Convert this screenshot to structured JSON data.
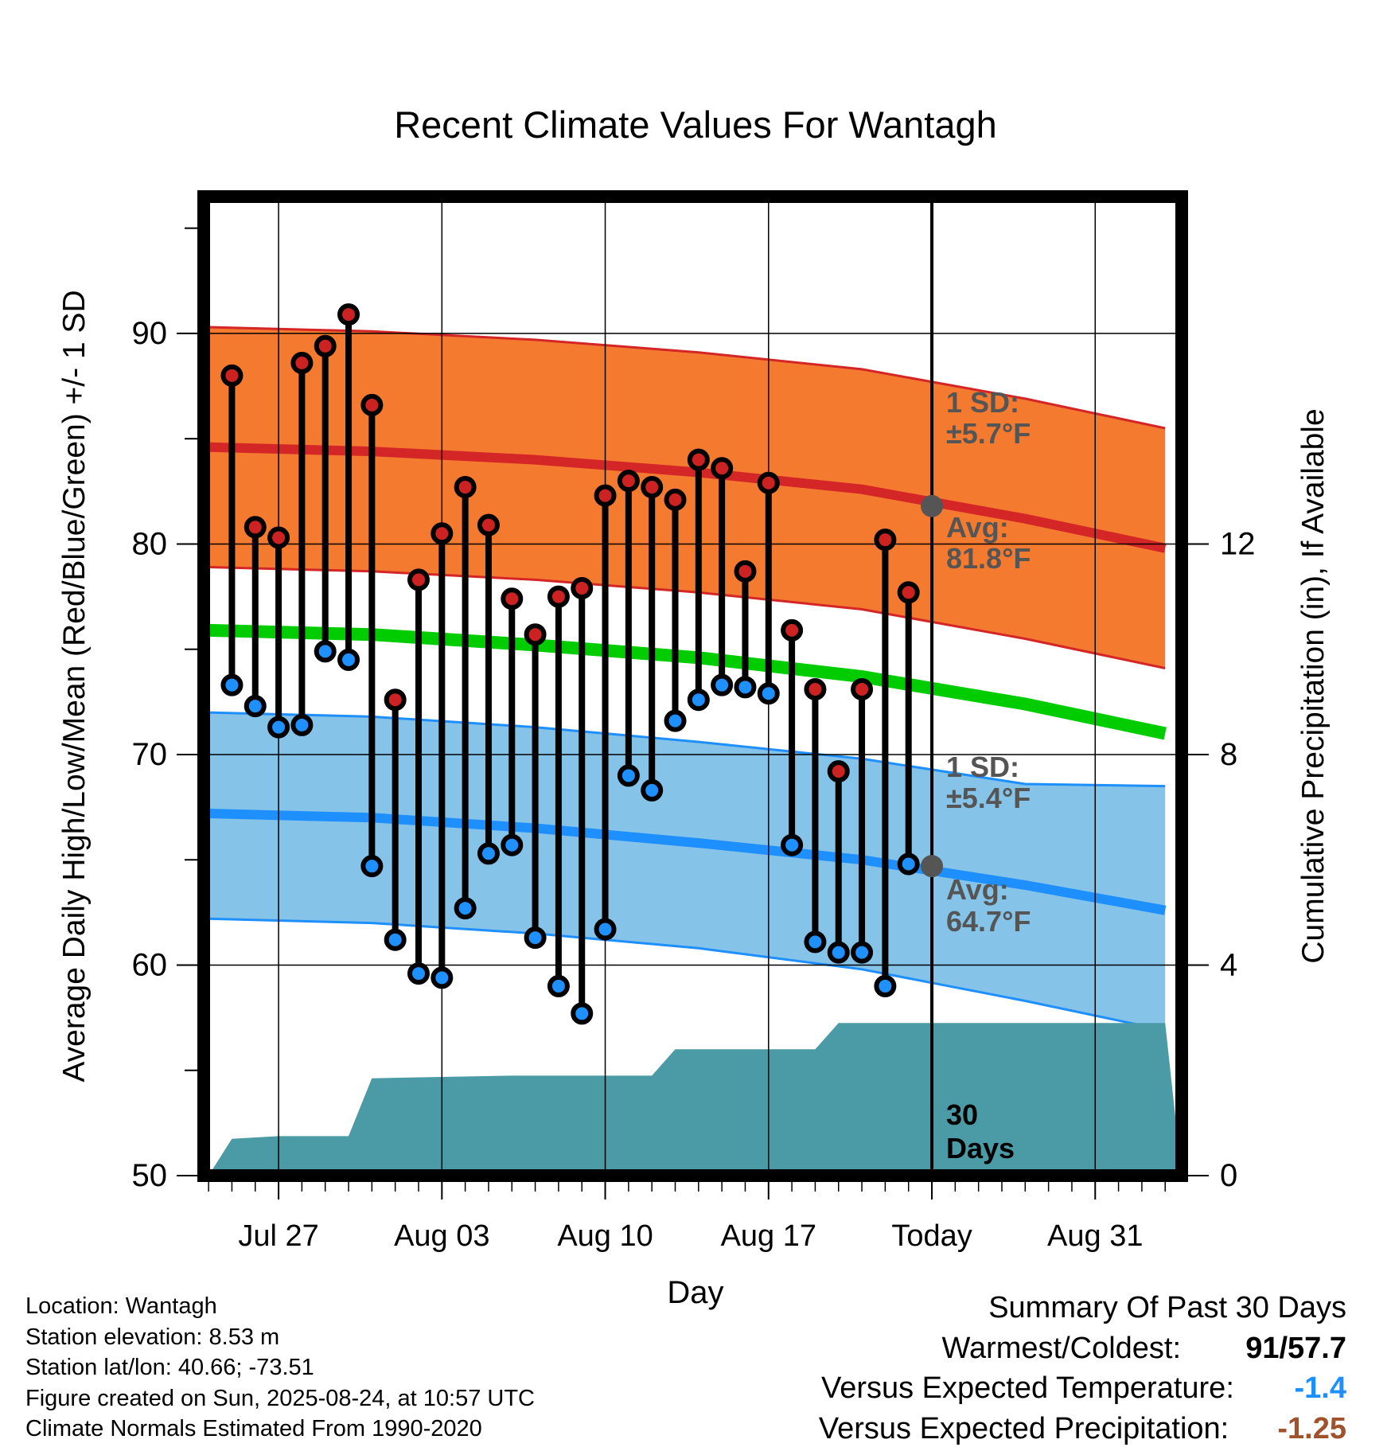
{
  "chart_data": {
    "type": "line",
    "title": "Recent Climate Values For Wantagh",
    "xlabel": "Day",
    "ylabel": "Average Daily High/Low/Mean (Red/Blue/Green) +/- 1 SD",
    "y2label": "Cumulative Precipitation (in), If Available",
    "ylim": [
      50,
      96.5
    ],
    "y2lim": [
      0,
      18.6
    ],
    "y_ticks": [
      "50",
      "60",
      "70",
      "80",
      "90"
    ],
    "y2_ticks": [
      "0",
      "4",
      "8",
      "12"
    ],
    "x_ticks": [
      "Jul 27",
      "Aug 03",
      "Aug 10",
      "Aug 17",
      "Today",
      "Aug 31"
    ],
    "x_tick_dates": [
      "2025-07-27",
      "2025-08-03",
      "2025-08-10",
      "2025-08-17",
      "2025-08-24",
      "2025-08-31"
    ],
    "xlim": [
      "2025-07-23T19:00",
      "2025-09-03T17:00"
    ],
    "today": "2025-08-24",
    "grid": true,
    "dates": [
      "2025-07-25",
      "2025-07-26",
      "2025-07-27",
      "2025-07-28",
      "2025-07-29",
      "2025-07-30",
      "2025-07-31",
      "2025-08-01",
      "2025-08-02",
      "2025-08-03",
      "2025-08-04",
      "2025-08-05",
      "2025-08-06",
      "2025-08-07",
      "2025-08-08",
      "2025-08-09",
      "2025-08-10",
      "2025-08-11",
      "2025-08-12",
      "2025-08-13",
      "2025-08-14",
      "2025-08-15",
      "2025-08-16",
      "2025-08-17",
      "2025-08-18",
      "2025-08-19",
      "2025-08-20",
      "2025-08-21",
      "2025-08-22",
      "2025-08-23"
    ],
    "series": [
      {
        "name": "High",
        "color": "#cc2222",
        "values": [
          88.0,
          80.8,
          80.3,
          88.6,
          89.4,
          90.9,
          86.6,
          72.6,
          78.3,
          80.5,
          82.7,
          80.9,
          77.4,
          75.7,
          77.5,
          77.9,
          82.3,
          83.0,
          82.7,
          82.1,
          84.0,
          83.6,
          78.7,
          82.9,
          75.9,
          73.1,
          69.2,
          73.1,
          80.2,
          77.7
        ]
      },
      {
        "name": "Low",
        "color": "#1e90ff",
        "values": [
          73.3,
          72.3,
          71.3,
          71.4,
          74.9,
          74.5,
          64.7,
          61.2,
          59.6,
          59.4,
          62.7,
          65.3,
          65.7,
          61.3,
          59.0,
          57.7,
          61.7,
          69.0,
          68.3,
          71.6,
          72.6,
          73.3,
          73.2,
          72.9,
          65.7,
          61.1,
          60.6,
          60.6,
          59.0,
          64.8
        ]
      }
    ],
    "normals": {
      "dates": [
        "2025-07-24",
        "2025-07-31",
        "2025-08-07",
        "2025-08-14",
        "2025-08-21",
        "2025-08-28",
        "2025-09-03"
      ],
      "high_mean": [
        84.6,
        84.4,
        84.0,
        83.4,
        82.6,
        81.2,
        79.8
      ],
      "high_upper": [
        90.3,
        90.1,
        89.7,
        89.1,
        88.3,
        86.9,
        85.5
      ],
      "high_lower": [
        78.9,
        78.7,
        78.3,
        77.7,
        76.9,
        75.5,
        74.1
      ],
      "mean": [
        75.9,
        75.7,
        75.2,
        74.6,
        73.7,
        72.4,
        71.0
      ],
      "low_mean": [
        67.2,
        67.0,
        66.5,
        65.8,
        65.0,
        63.8,
        62.6
      ],
      "low_upper": [
        72.0,
        71.8,
        71.3,
        70.6,
        69.8,
        68.6,
        68.5
      ],
      "low_lower": [
        62.2,
        62.0,
        61.5,
        60.8,
        59.8,
        58.3,
        56.9
      ]
    },
    "precip": {
      "dates": [
        "2025-07-24",
        "2025-07-25",
        "2025-07-27",
        "2025-07-30",
        "2025-07-31",
        "2025-08-06",
        "2025-08-12",
        "2025-08-13",
        "2025-08-19",
        "2025-08-20",
        "2025-08-23",
        "2025-09-03"
      ],
      "values": [
        0.0,
        0.7,
        0.75,
        0.75,
        1.85,
        1.9,
        1.9,
        2.4,
        2.4,
        2.9,
        2.9,
        2.9
      ]
    },
    "annotations": {
      "high_sd": "1 SD:",
      "high_sd_value": "±5.7°F",
      "high_avg": "Avg:",
      "high_avg_value": "81.8°F",
      "low_sd": "1 SD:",
      "low_sd_value": "±5.4°F",
      "low_avg": "Avg:",
      "low_avg_value": "64.7°F",
      "days_line1": "30",
      "days_line2": "Days"
    },
    "colors": {
      "high_band": "#f47a30",
      "high_line": "#d42626",
      "mean_line": "#00cc00",
      "low_band": "#86c3e8",
      "low_line": "#1e8fff",
      "precip_fill": "#4a9ba6",
      "annotation_text": "#555555",
      "today_marker": "#555555"
    }
  },
  "info": {
    "location": "Location: Wantagh",
    "elevation": "Station elevation: 8.53 m",
    "latlon": "Station lat/lon: 40.66; -73.51",
    "created": "Figure created on Sun, 2025-08-24, at 10:57 UTC",
    "normals": "Climate Normals Estimated From 1990-2020"
  },
  "summary": {
    "title": "Summary Of Past 30 Days",
    "warmest_label": "Warmest/Coldest:",
    "warmest_value": "91",
    "coldest_value": "57.7",
    "temp_label": "Versus Expected Temperature:",
    "temp_value": "-1.4",
    "temp_color": "#1e8fff",
    "precip_label": "Versus Expected Precipitation:",
    "precip_value": "-1.25",
    "precip_color": "#a0522d"
  }
}
